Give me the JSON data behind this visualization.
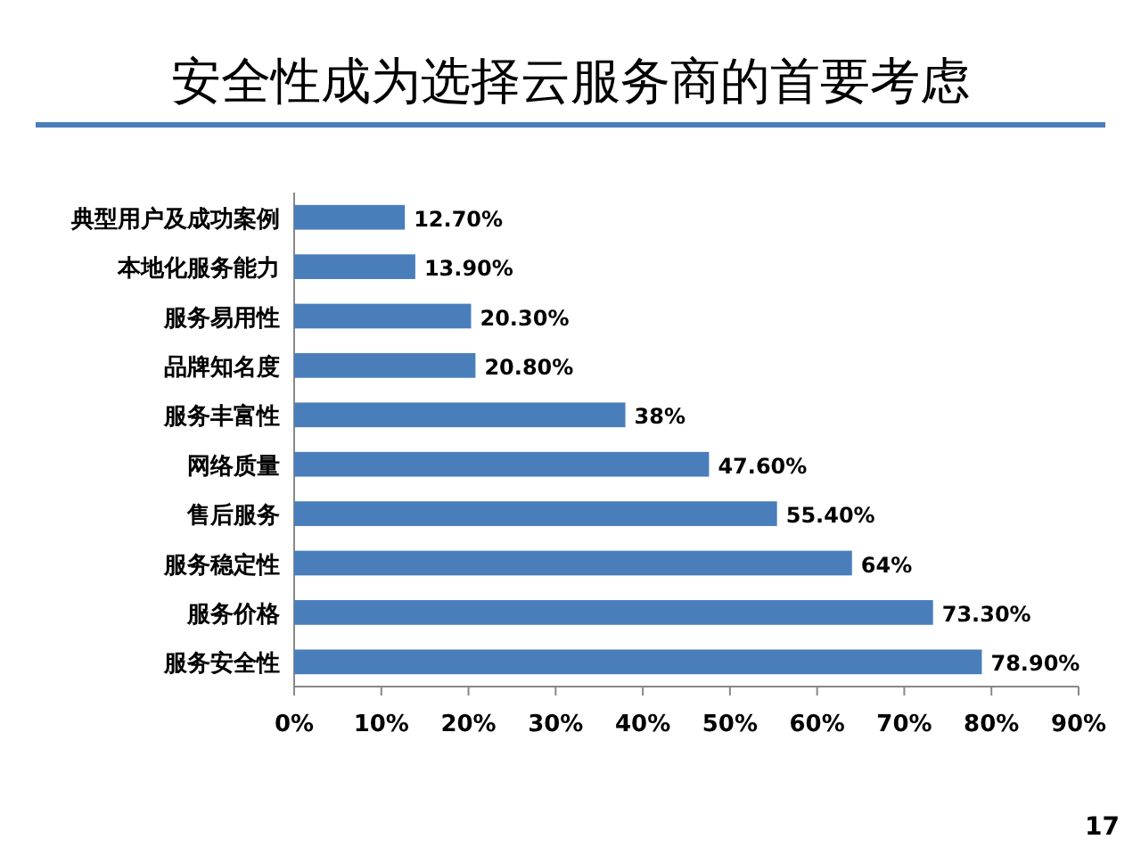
{
  "chart_data": {
    "type": "bar",
    "orientation": "horizontal",
    "title": "安全性成为选择云服务商的首要考虑",
    "categories": [
      "典型用户及成功案例",
      "本地化服务能力",
      "服务易用性",
      "品牌知名度",
      "服务丰富性",
      "网络质量",
      "售后服务",
      "服务稳定性",
      "服务价格",
      "服务安全性"
    ],
    "values": [
      12.7,
      13.9,
      20.3,
      20.8,
      38,
      47.6,
      55.4,
      64,
      73.3,
      78.9
    ],
    "value_labels": [
      "12.70%",
      "13.90%",
      "20.30%",
      "20.80%",
      "38%",
      "47.60%",
      "55.40%",
      "64%",
      "73.30%",
      "78.90%"
    ],
    "color": "#4a7ebb",
    "xlim": [
      0,
      90
    ],
    "xticks": [
      {
        "value": 0,
        "label": "0%"
      },
      {
        "value": 10,
        "label": "10%"
      },
      {
        "value": 20,
        "label": "20%"
      },
      {
        "value": 30,
        "label": "30%"
      },
      {
        "value": 40,
        "label": "40%"
      },
      {
        "value": 50,
        "label": "50%"
      },
      {
        "value": 60,
        "label": "60%"
      },
      {
        "value": 70,
        "label": "70%"
      },
      {
        "value": 80,
        "label": "80%"
      },
      {
        "value": 90,
        "label": "90%"
      }
    ],
    "annotations": [
      "17"
    ]
  }
}
